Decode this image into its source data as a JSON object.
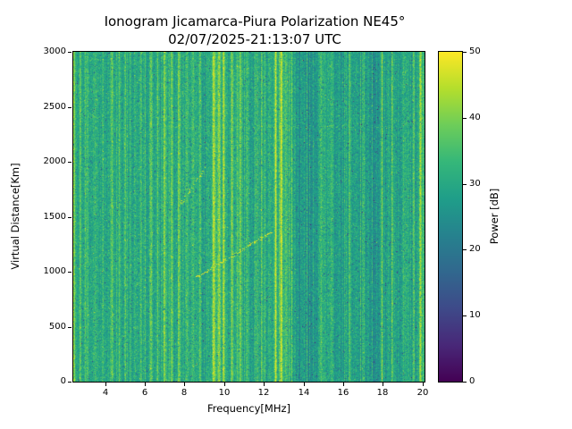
{
  "figure": {
    "background": "#ffffff"
  },
  "chart_data": {
    "type": "heatmap",
    "title": "Ionogram Jicamarca-Piura Polarization NE45°",
    "subtitle": "02/07/2025-21:13:07 UTC",
    "xlabel": "Frequency[MHz]",
    "ylabel": "Virtual Distance[Km]",
    "colorbar_label": "Power [dB]",
    "xlim": [
      2.4,
      20.1
    ],
    "ylim": [
      0,
      3000
    ],
    "clim": [
      0,
      50
    ],
    "xticks": [
      4,
      6,
      8,
      10,
      12,
      14,
      16,
      18,
      20
    ],
    "yticks": [
      0,
      500,
      1000,
      1500,
      2000,
      2500,
      3000
    ],
    "colorbar_ticks": [
      0,
      10,
      20,
      30,
      40,
      50
    ],
    "colormap": "viridis",
    "colormap_stops": [
      "#440154",
      "#482878",
      "#3e4a89",
      "#31688e",
      "#26828e",
      "#1f9e89",
      "#35b779",
      "#6dcd59",
      "#b4de2c",
      "#fde725"
    ],
    "background_noise": {
      "mean_db": 29.5,
      "std_db": 5,
      "seed": 1337
    },
    "rfi_stripes": [
      [
        2.45,
        0.05,
        9
      ],
      [
        2.75,
        0.04,
        6
      ],
      [
        3.1,
        0.05,
        7
      ],
      [
        3.5,
        0.04,
        5
      ],
      [
        3.9,
        0.04,
        4
      ],
      [
        4.35,
        0.05,
        7
      ],
      [
        4.75,
        0.04,
        4
      ],
      [
        5.05,
        0.05,
        6
      ],
      [
        5.5,
        0.04,
        5
      ],
      [
        5.95,
        0.04,
        4
      ],
      [
        6.3,
        0.05,
        9
      ],
      [
        6.65,
        0.04,
        7
      ],
      [
        7.0,
        0.05,
        10
      ],
      [
        7.35,
        0.05,
        8
      ],
      [
        7.75,
        0.05,
        9
      ],
      [
        8.1,
        0.04,
        6
      ],
      [
        8.45,
        0.05,
        8
      ],
      [
        8.8,
        0.04,
        7
      ],
      [
        9.15,
        0.04,
        5
      ],
      [
        9.5,
        0.06,
        13
      ],
      [
        9.75,
        0.06,
        14
      ],
      [
        10.0,
        0.05,
        12
      ],
      [
        10.4,
        0.05,
        8
      ],
      [
        10.8,
        0.04,
        6
      ],
      [
        11.15,
        0.05,
        8
      ],
      [
        11.55,
        0.04,
        6
      ],
      [
        11.9,
        0.04,
        4
      ],
      [
        12.3,
        0.04,
        5
      ],
      [
        12.6,
        0.06,
        12
      ],
      [
        12.9,
        0.06,
        13
      ],
      [
        13.15,
        0.05,
        8
      ],
      [
        13.4,
        0.04,
        6
      ],
      [
        14.05,
        0.04,
        4
      ],
      [
        14.9,
        0.05,
        8
      ],
      [
        15.45,
        0.04,
        5
      ],
      [
        16.35,
        0.05,
        8
      ],
      [
        17.05,
        0.04,
        5
      ],
      [
        17.95,
        0.05,
        7
      ],
      [
        18.5,
        0.04,
        4
      ],
      [
        19.05,
        0.04,
        5
      ],
      [
        19.55,
        0.04,
        6
      ],
      [
        19.9,
        0.06,
        11
      ],
      [
        20.08,
        0.05,
        9
      ]
    ],
    "dark_bands": [
      [
        13.7,
        0.15,
        -2
      ],
      [
        14.35,
        0.3,
        -3.5
      ],
      [
        15.9,
        0.25,
        -3
      ],
      [
        16.7,
        0.2,
        -2.5
      ],
      [
        17.5,
        0.3,
        -3.5
      ],
      [
        18.8,
        0.2,
        -2.5
      ]
    ],
    "echo_traces": [
      {
        "name": "oblique-echo",
        "power_db": 47,
        "density": 0.75,
        "points": [
          [
            8.55,
            950
          ],
          [
            9.05,
            1000
          ],
          [
            9.55,
            1060
          ],
          [
            10.05,
            1110
          ],
          [
            10.6,
            1170
          ],
          [
            11.2,
            1240
          ],
          [
            11.8,
            1305
          ],
          [
            12.35,
            1360
          ]
        ]
      },
      {
        "name": "secondary-echo",
        "power_db": 45,
        "density": 0.6,
        "points": [
          [
            7.8,
            1620
          ],
          [
            8.2,
            1730
          ],
          [
            8.6,
            1840
          ],
          [
            9.0,
            1950
          ]
        ]
      },
      {
        "name": "horizontal-artifact",
        "power_db": 35,
        "density": 0.35,
        "points": [
          [
            6.6,
            2320
          ],
          [
            18.4,
            2320
          ]
        ]
      }
    ]
  }
}
